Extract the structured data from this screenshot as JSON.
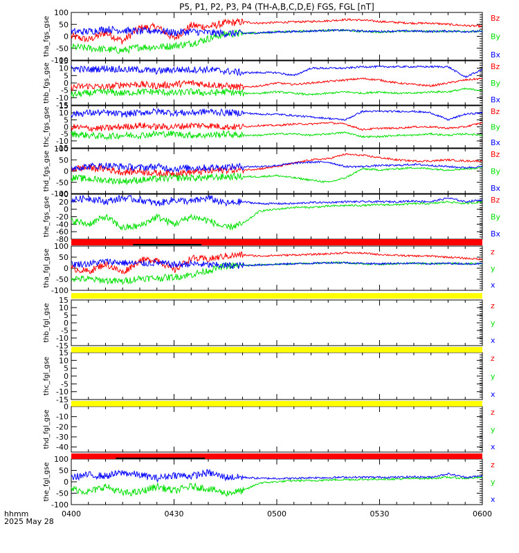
{
  "title": "P5, P1, P2, P3, P4 (TH-A,B,C,D,E) FGS, FGL [nT]",
  "footer": {
    "format": "hhmm",
    "date": "2025 May 28"
  },
  "x_ticks": [
    "0400",
    "0430",
    "0500",
    "0530",
    "0600"
  ],
  "colors": {
    "x": "#0000ff",
    "y": "#00e000",
    "z": "#ff0000",
    "bar_red": "#ff0000",
    "bar_yellow": "#ffff00",
    "bar_black": "#000000"
  },
  "chart_data": [
    {
      "type": "line",
      "ylabel": "tha_fgs_gse",
      "ylim": [
        -100,
        100
      ],
      "yticks": [
        "100",
        "50",
        "0",
        "-50",
        "-100"
      ],
      "legend": [
        "Bz",
        "By",
        "Bx"
      ],
      "series": [
        {
          "component": "z",
          "values": [
            0,
            -15,
            15,
            -20,
            35,
            40,
            -10,
            45,
            40,
            55,
            60,
            55,
            58,
            60,
            62,
            65,
            70,
            68,
            62,
            58,
            55,
            55,
            50,
            45,
            42
          ]
        },
        {
          "component": "y",
          "values": [
            -45,
            -50,
            -55,
            -60,
            -45,
            -45,
            -40,
            -30,
            -10,
            10,
            12,
            15,
            18,
            20,
            22,
            25,
            25,
            20,
            18,
            20,
            22,
            20,
            22,
            20,
            22
          ]
        },
        {
          "component": "x",
          "values": [
            18,
            20,
            30,
            25,
            20,
            25,
            15,
            20,
            15,
            12,
            12,
            15,
            18,
            20,
            22,
            25,
            25,
            22,
            20,
            22,
            22,
            20,
            22,
            20,
            20
          ]
        }
      ]
    },
    {
      "type": "line",
      "ylabel": "thb_fgs_gse",
      "ylim": [
        -15,
        15
      ],
      "yticks": [
        "15",
        "10",
        "5",
        "0",
        "-5",
        "-10",
        "-15"
      ],
      "legend": [
        "Bz",
        "By",
        "Bx"
      ],
      "series": [
        {
          "component": "z",
          "values": [
            -3,
            -2,
            -3,
            -1,
            -1,
            -2,
            -1,
            0,
            -1,
            -2,
            -3,
            -2,
            0,
            -1,
            0,
            1,
            2,
            3,
            2,
            0,
            -1,
            -2,
            0,
            2,
            3
          ]
        },
        {
          "component": "y",
          "values": [
            -8,
            -7,
            -6,
            -7,
            -6,
            -6,
            -7,
            -6,
            -7,
            -6,
            -7,
            -7,
            -6,
            -7,
            -8,
            -7,
            -6,
            -7,
            -6,
            -7,
            -7,
            -6,
            -6,
            -4,
            -5
          ]
        },
        {
          "component": "x",
          "values": [
            10,
            9,
            10,
            9,
            9,
            8,
            9,
            9,
            9,
            8,
            7,
            7,
            7,
            5,
            10,
            10,
            10,
            11,
            11,
            11,
            11,
            11,
            11,
            4,
            9
          ]
        }
      ]
    },
    {
      "type": "line",
      "ylabel": "thc_fgs_gse",
      "ylim": [
        -15,
        15
      ],
      "yticks": [
        "15",
        "10",
        "5",
        "0",
        "-5",
        "-10",
        "-15"
      ],
      "legend": [
        "Bz",
        "By",
        "Bx"
      ],
      "series": [
        {
          "component": "z",
          "values": [
            0,
            -1,
            -1,
            0,
            1,
            0,
            0,
            1,
            1,
            0,
            0,
            1,
            1,
            2,
            2,
            3,
            2,
            -2,
            -1,
            -1,
            0,
            0,
            -1,
            0,
            3
          ]
        },
        {
          "component": "y",
          "values": [
            -5,
            -6,
            -7,
            -6,
            -6,
            -5,
            -5,
            -6,
            -6,
            -5,
            -6,
            -6,
            -5,
            -5,
            -6,
            -5,
            -4,
            -7,
            -7,
            -6,
            -6,
            -5,
            -6,
            -5,
            -6
          ]
        },
        {
          "component": "x",
          "values": [
            9,
            10,
            10,
            9,
            10,
            11,
            10,
            10,
            11,
            10,
            10,
            9,
            9,
            8,
            7,
            6,
            5,
            11,
            11,
            11,
            11,
            10,
            5,
            9,
            10
          ]
        }
      ]
    },
    {
      "type": "line",
      "ylabel": "thd_fgs_gse",
      "ylim": [
        -100,
        100
      ],
      "yticks": [
        "100",
        "50",
        "0",
        "-50",
        "-100"
      ],
      "legend": [
        "Bz",
        "By",
        "Bx"
      ],
      "series": [
        {
          "component": "z",
          "values": [
            10,
            15,
            10,
            -5,
            0,
            -10,
            -10,
            -5,
            0,
            5,
            5,
            10,
            20,
            35,
            50,
            55,
            75,
            70,
            60,
            50,
            45,
            45,
            50,
            45,
            45
          ]
        },
        {
          "component": "y",
          "values": [
            -30,
            -35,
            -40,
            -45,
            -40,
            -35,
            -30,
            -30,
            -30,
            -25,
            -25,
            -25,
            -20,
            -30,
            -40,
            -50,
            -30,
            10,
            5,
            10,
            15,
            10,
            5,
            10,
            15
          ]
        },
        {
          "component": "x",
          "values": [
            15,
            20,
            25,
            20,
            15,
            20,
            10,
            15,
            15,
            18,
            20,
            20,
            25,
            35,
            40,
            40,
            20,
            20,
            25,
            25,
            30,
            25,
            20,
            15,
            20
          ]
        }
      ]
    },
    {
      "type": "line",
      "ylabel": "the_fgs_gse",
      "ylim": [
        -80,
        40
      ],
      "yticks": [
        "40",
        "20",
        "0",
        "-20",
        "-40",
        "-60",
        "-80"
      ],
      "legend": [
        "Bz",
        "By",
        "Bx"
      ],
      "series": [
        {
          "component": "y",
          "values": [
            -30,
            -40,
            -20,
            -50,
            -45,
            -20,
            -40,
            -20,
            -30,
            -50,
            -40,
            -5,
            0,
            5,
            5,
            8,
            10,
            10,
            12,
            12,
            15,
            15,
            20,
            15,
            20
          ]
        },
        {
          "component": "x",
          "values": [
            25,
            30,
            20,
            30,
            25,
            15,
            25,
            20,
            30,
            15,
            20,
            15,
            15,
            15,
            18,
            18,
            20,
            20,
            20,
            20,
            22,
            20,
            30,
            20,
            25
          ]
        }
      ]
    },
    {
      "type": "line",
      "ylabel": "tha_fgl_gse",
      "ylim": [
        -100,
        100
      ],
      "yticks": [
        "100",
        "50",
        "0",
        "-50",
        "-100"
      ],
      "legend": [
        "z",
        "y",
        "x"
      ],
      "series": [
        {
          "component": "z",
          "values": [
            0,
            -15,
            20,
            -20,
            35,
            40,
            -10,
            45,
            40,
            55,
            60,
            55,
            58,
            60,
            62,
            65,
            70,
            68,
            62,
            58,
            55,
            55,
            50,
            45,
            40
          ]
        },
        {
          "component": "y",
          "values": [
            -45,
            -50,
            -55,
            -60,
            -45,
            -45,
            -40,
            -30,
            -10,
            10,
            12,
            15,
            18,
            20,
            22,
            25,
            25,
            20,
            18,
            20,
            22,
            20,
            22,
            20,
            22
          ]
        },
        {
          "component": "x",
          "values": [
            18,
            20,
            30,
            25,
            20,
            25,
            15,
            20,
            15,
            12,
            12,
            15,
            18,
            20,
            22,
            25,
            25,
            22,
            20,
            22,
            22,
            20,
            22,
            20,
            20
          ]
        }
      ]
    },
    {
      "type": "line",
      "ylabel": "thb_fgl_gse",
      "ylim": [
        -15,
        15
      ],
      "yticks": [
        "15",
        "10",
        "5",
        "0",
        "-5",
        "-10",
        "-15"
      ],
      "legend": [
        "z",
        "y",
        "x"
      ],
      "series": []
    },
    {
      "type": "line",
      "ylabel": "thc_fgl_gse",
      "ylim": [
        -15,
        15
      ],
      "yticks": [
        "15",
        "10",
        "5",
        "0",
        "-5",
        "-10",
        "-15"
      ],
      "legend": [
        "z",
        "y",
        "x"
      ],
      "series": []
    },
    {
      "type": "line",
      "ylabel": "thd_fgl_gse",
      "ylim": [
        -45,
        0
      ],
      "yticks": [
        "0",
        "-10",
        "-20",
        "-30",
        "-40"
      ],
      "legend": [
        "z",
        "y",
        "x"
      ],
      "series": []
    },
    {
      "type": "line",
      "ylabel": "the_fgl_gse",
      "ylim": [
        -100,
        100
      ],
      "yticks": [
        "100",
        "50",
        "0",
        "-50",
        "-100"
      ],
      "legend": [
        "z",
        "y",
        "x"
      ],
      "series": [
        {
          "component": "y",
          "values": [
            -30,
            -45,
            -20,
            -50,
            -45,
            -20,
            -40,
            -20,
            -30,
            -50,
            -40,
            -5,
            0,
            5,
            5,
            8,
            10,
            10,
            12,
            12,
            15,
            15,
            20,
            15,
            20
          ]
        },
        {
          "component": "x",
          "values": [
            20,
            30,
            25,
            40,
            30,
            15,
            30,
            25,
            40,
            20,
            20,
            15,
            15,
            15,
            18,
            18,
            20,
            20,
            20,
            20,
            22,
            20,
            35,
            20,
            25
          ]
        }
      ]
    }
  ],
  "status_bars": [
    {
      "after_panel": 5,
      "color": "bar_red",
      "black_segment": [
        "0418",
        "0438"
      ]
    },
    {
      "after_panel": 6,
      "color": "bar_yellow"
    },
    {
      "after_panel": 7,
      "color": "bar_yellow"
    },
    {
      "after_panel": 8,
      "color": "bar_yellow"
    },
    {
      "after_panel": 9,
      "color": "bar_red",
      "black_segment": [
        "0413",
        "0439"
      ]
    }
  ]
}
